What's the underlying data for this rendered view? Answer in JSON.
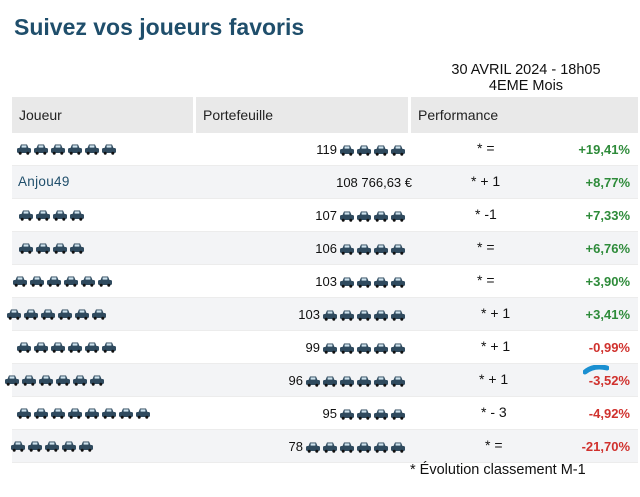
{
  "page_title": "Suivez vos joueurs favoris",
  "date_line": "30 AVRIL 2024 - 18h05",
  "period_line": "4EME Mois",
  "columns": {
    "player": "Joueur",
    "wallet": "Portefeuille",
    "performance": "Performance"
  },
  "colors": {
    "title": "#1f4e6b",
    "positive": "#2e8b3a",
    "negative": "#d0312d",
    "redaction": "#2f4a5e"
  },
  "rows": [
    {
      "name": "",
      "name_cars": 6,
      "wallet_prefix": "119",
      "wallet_text": "",
      "wallet_cars": 4,
      "rank": "* =",
      "perf": "+19,41%",
      "sign": "pos"
    },
    {
      "name": "Anjou49",
      "name_cars": 0,
      "wallet_prefix": "",
      "wallet_text": "108 766,63 €",
      "wallet_cars": 0,
      "rank": "* + 1",
      "perf": "+8,77%",
      "sign": "pos"
    },
    {
      "name": "",
      "name_cars": 4,
      "wallet_prefix": "107",
      "wallet_text": "",
      "wallet_cars": 4,
      "rank": "* -1",
      "perf": "+7,33%",
      "sign": "pos"
    },
    {
      "name": "",
      "name_cars": 4,
      "wallet_prefix": "106",
      "wallet_text": "",
      "wallet_cars": 4,
      "rank": "* =",
      "perf": "+6,76%",
      "sign": "pos"
    },
    {
      "name": "",
      "name_cars": 6,
      "wallet_prefix": "103",
      "wallet_text": "",
      "wallet_cars": 4,
      "rank": "* =",
      "perf": "+3,90%",
      "sign": "pos"
    },
    {
      "name": "",
      "name_cars": 6,
      "wallet_prefix": "103",
      "wallet_text": "",
      "wallet_cars": 5,
      "rank": "* + 1",
      "perf": "+3,41%",
      "sign": "pos"
    },
    {
      "name": "",
      "name_cars": 6,
      "wallet_prefix": "99",
      "wallet_text": "",
      "wallet_cars": 5,
      "rank": "* + 1",
      "perf": "-0,99%",
      "sign": "neg"
    },
    {
      "name": "",
      "name_cars": 6,
      "wallet_prefix": "96",
      "wallet_text": "",
      "wallet_cars": 6,
      "rank": "* + 1",
      "perf": "-3,52%",
      "sign": "neg"
    },
    {
      "name": "",
      "name_cars": 8,
      "wallet_prefix": "95",
      "wallet_text": "",
      "wallet_cars": 4,
      "rank": "* - 3",
      "perf": "-4,92%",
      "sign": "neg"
    },
    {
      "name": "",
      "name_cars": 5,
      "wallet_prefix": "78",
      "wallet_text": "",
      "wallet_cars": 6,
      "rank": "* =",
      "perf": "-21,70%",
      "sign": "neg"
    }
  ],
  "footnote": "* Évolution classement M-1"
}
